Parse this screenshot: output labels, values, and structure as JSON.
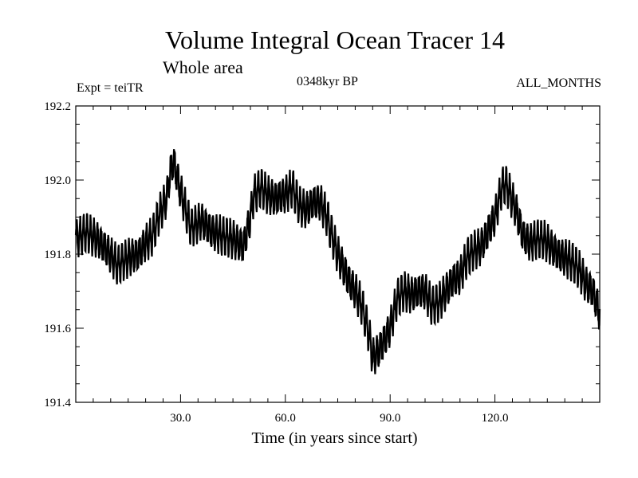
{
  "chart_data": {
    "type": "line",
    "title": "Volume Integral Ocean Tracer 14",
    "subtitle": "Whole area",
    "annotations": {
      "experiment": "Expt = teiTR",
      "period": "0348kyr BP",
      "months": "ALL_MONTHS"
    },
    "xlabel": "Time (in years since start)",
    "ylabel": "",
    "xlim": [
      0,
      150
    ],
    "ylim": [
      191.4,
      192.2
    ],
    "xticks": [
      30,
      60,
      90,
      120
    ],
    "xtick_labels": [
      "30.0",
      "60.0",
      "90.0",
      "120.0"
    ],
    "yticks": [
      191.4,
      191.6,
      191.8,
      192.0,
      192.2
    ],
    "ytick_labels": [
      "191.4",
      "191.6",
      "191.8",
      "192.0",
      "192.2"
    ],
    "grid": false,
    "line_color": "#000000",
    "series": [
      {
        "x": [
          0,
          3,
          6,
          9,
          12,
          15,
          18,
          20,
          22,
          24,
          26,
          27,
          28,
          30,
          33,
          36,
          39,
          42,
          45,
          48,
          50,
          51,
          53,
          55,
          57,
          60,
          62,
          64,
          66,
          68,
          70,
          72,
          73,
          75,
          78,
          80,
          82,
          84,
          85,
          86,
          88,
          90,
          92,
          94,
          96,
          98,
          100,
          102,
          104,
          106,
          108,
          110,
          112,
          114,
          116,
          118,
          120,
          122,
          123,
          124,
          126,
          128,
          130,
          132,
          134,
          136,
          138,
          140,
          142,
          144,
          146,
          148,
          150
        ],
        "y": [
          191.84,
          191.86,
          191.84,
          191.81,
          191.77,
          191.79,
          191.8,
          191.83,
          191.85,
          191.91,
          191.95,
          192.02,
          192.05,
          191.97,
          191.87,
          191.89,
          191.86,
          191.85,
          191.84,
          191.82,
          191.9,
          191.96,
          191.98,
          191.96,
          191.95,
          191.96,
          191.98,
          191.93,
          191.92,
          191.94,
          191.94,
          191.9,
          191.86,
          191.8,
          191.73,
          191.7,
          191.66,
          191.58,
          191.52,
          191.53,
          191.56,
          191.6,
          191.68,
          191.7,
          191.69,
          191.7,
          191.7,
          191.66,
          191.67,
          191.7,
          191.73,
          191.74,
          191.79,
          191.81,
          191.82,
          191.86,
          191.9,
          191.98,
          191.99,
          191.97,
          191.92,
          191.85,
          191.83,
          191.84,
          191.84,
          191.82,
          191.8,
          191.79,
          191.78,
          191.76,
          191.72,
          191.7,
          191.64
        ]
      }
    ]
  }
}
